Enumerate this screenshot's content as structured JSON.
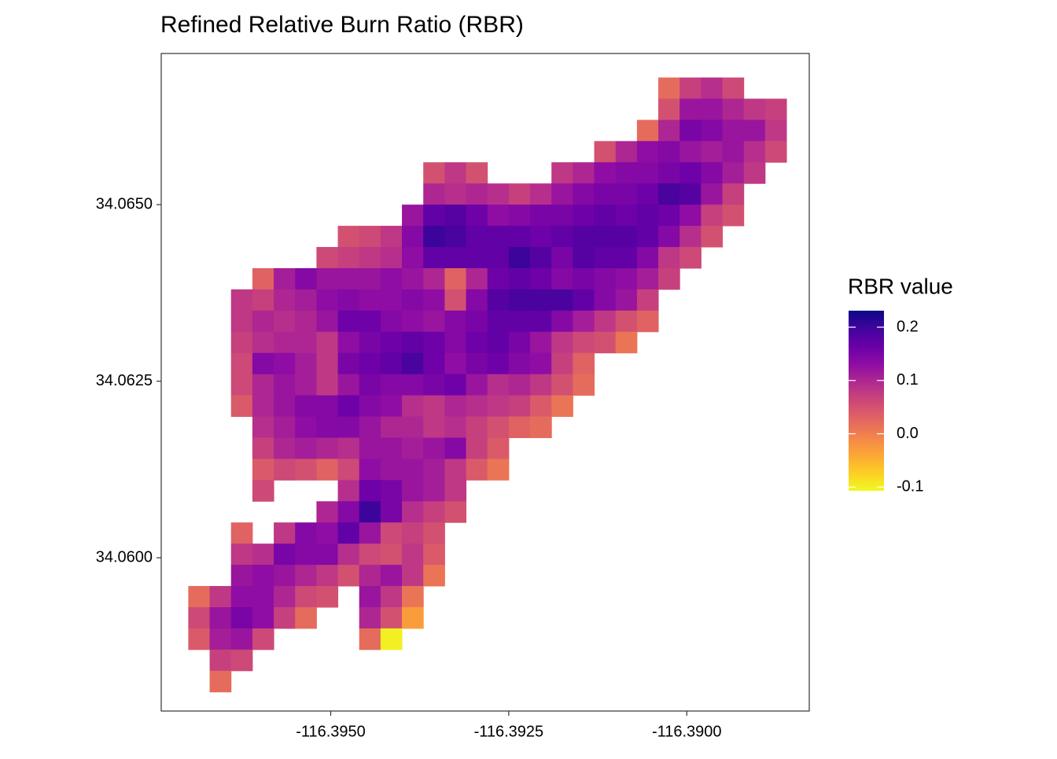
{
  "chart_data": {
    "type": "heatmap",
    "title": "Refined Relative Burn Ratio (RBR)",
    "legend_title": "RBR value",
    "colormap": "plasma",
    "reverse_colormap": true,
    "xlim": [
      -116.39738,
      -116.38828
    ],
    "ylim": [
      34.05783,
      34.06714
    ],
    "xticks": [
      {
        "value": -116.395,
        "label": "-116.3950"
      },
      {
        "value": -116.3925,
        "label": "-116.3925"
      },
      {
        "value": -116.39,
        "label": "-116.3900"
      }
    ],
    "yticks": [
      {
        "value": 34.06,
        "label": "34.0600"
      },
      {
        "value": 34.0625,
        "label": "34.0625"
      },
      {
        "value": 34.065,
        "label": "34.0650"
      }
    ],
    "zlim": [
      -0.107,
      0.231
    ],
    "zticks": [
      -0.1,
      {
        "value": 0,
        "label": "0.0"
      },
      0.1,
      0.2
    ],
    "x": [
      -116.39685,
      -116.39655,
      -116.39625,
      -116.39595,
      -116.39565,
      -116.39535,
      -116.39505,
      -116.39475,
      -116.39445,
      -116.39415,
      -116.39385,
      -116.39355,
      -116.39325,
      -116.39295,
      -116.39265,
      -116.39235,
      -116.39205,
      -116.39175,
      -116.39145,
      -116.39115,
      -116.39085,
      -116.39055,
      -116.39025,
      -116.38995,
      -116.38965,
      -116.38935,
      -116.38905,
      -116.38875
    ],
    "y": [
      34.06665,
      34.06635,
      34.06605,
      34.06575,
      34.06545,
      34.06515,
      34.06485,
      34.06455,
      34.06425,
      34.06395,
      34.06365,
      34.06335,
      34.06305,
      34.06275,
      34.06245,
      34.06215,
      34.06185,
      34.06155,
      34.06125,
      34.06095,
      34.06065,
      34.06035,
      34.06005,
      34.05975,
      34.05945,
      34.05915,
      34.05885,
      34.05855,
      34.05825
    ],
    "z": [
      [
        null,
        null,
        null,
        null,
        null,
        null,
        null,
        null,
        null,
        null,
        null,
        null,
        null,
        null,
        null,
        null,
        null,
        null,
        null,
        null,
        null,
        null,
        0.02,
        0.07,
        0.09,
        0.06,
        null,
        null
      ],
      [
        null,
        null,
        null,
        null,
        null,
        null,
        null,
        null,
        null,
        null,
        null,
        null,
        null,
        null,
        null,
        null,
        null,
        null,
        null,
        null,
        null,
        null,
        0.05,
        0.12,
        0.12,
        0.1,
        0.08,
        0.07
      ],
      [
        null,
        null,
        null,
        null,
        null,
        null,
        null,
        null,
        null,
        null,
        null,
        null,
        null,
        null,
        null,
        null,
        null,
        null,
        null,
        null,
        null,
        0.02,
        0.1,
        0.15,
        0.14,
        0.12,
        0.12,
        0.08
      ],
      [
        null,
        null,
        null,
        null,
        null,
        null,
        null,
        null,
        null,
        null,
        null,
        null,
        null,
        null,
        null,
        null,
        null,
        null,
        null,
        0.05,
        0.1,
        0.13,
        0.14,
        0.12,
        0.11,
        0.12,
        0.09,
        0.06
      ],
      [
        null,
        null,
        null,
        null,
        null,
        null,
        null,
        null,
        null,
        null,
        null,
        0.05,
        0.08,
        0.05,
        null,
        null,
        null,
        0.08,
        0.1,
        0.13,
        0.14,
        0.14,
        0.15,
        0.16,
        0.14,
        0.11,
        0.08,
        null
      ],
      [
        null,
        null,
        null,
        null,
        null,
        null,
        null,
        null,
        null,
        null,
        null,
        0.1,
        0.09,
        0.1,
        0.09,
        0.07,
        0.09,
        0.12,
        0.14,
        0.15,
        0.15,
        0.16,
        0.19,
        0.18,
        0.12,
        0.07,
        null,
        null
      ],
      [
        null,
        null,
        null,
        null,
        null,
        null,
        null,
        null,
        null,
        null,
        0.12,
        0.17,
        0.18,
        0.16,
        0.13,
        0.14,
        0.15,
        0.15,
        0.16,
        0.17,
        0.16,
        0.17,
        0.16,
        0.13,
        0.07,
        0.05,
        null,
        null
      ],
      [
        null,
        null,
        null,
        null,
        null,
        null,
        null,
        0.05,
        0.06,
        0.08,
        0.14,
        0.2,
        0.19,
        0.17,
        0.17,
        0.17,
        0.16,
        0.17,
        0.18,
        0.18,
        0.18,
        0.17,
        0.14,
        0.09,
        0.05,
        null,
        null,
        null
      ],
      [
        null,
        null,
        null,
        null,
        null,
        null,
        0.06,
        0.07,
        0.08,
        0.09,
        0.13,
        0.17,
        0.17,
        0.17,
        0.17,
        0.2,
        0.18,
        0.15,
        0.18,
        0.17,
        0.17,
        0.14,
        0.08,
        0.06,
        null,
        null,
        null,
        null
      ],
      [
        null,
        null,
        null,
        0.03,
        0.11,
        0.14,
        0.12,
        0.12,
        0.12,
        0.13,
        0.12,
        0.1,
        0.03,
        0.1,
        0.16,
        0.17,
        0.16,
        0.14,
        0.15,
        0.14,
        0.13,
        0.11,
        0.07,
        null,
        null,
        null,
        null,
        null
      ],
      [
        null,
        null,
        0.08,
        0.07,
        0.1,
        0.11,
        0.13,
        0.14,
        0.13,
        0.13,
        0.14,
        0.13,
        0.05,
        0.14,
        0.18,
        0.19,
        0.19,
        0.19,
        0.17,
        0.14,
        0.12,
        0.07,
        null,
        null,
        null,
        null,
        null,
        null
      ],
      [
        null,
        null,
        0.08,
        0.1,
        0.09,
        0.1,
        0.12,
        0.16,
        0.16,
        0.14,
        0.13,
        0.12,
        0.14,
        0.15,
        0.17,
        0.17,
        0.17,
        0.14,
        0.11,
        0.08,
        0.05,
        0.03,
        null,
        null,
        null,
        null,
        null,
        null
      ],
      [
        null,
        null,
        0.07,
        0.09,
        0.1,
        0.1,
        0.08,
        0.13,
        0.15,
        0.16,
        0.17,
        0.16,
        0.14,
        0.16,
        0.17,
        0.15,
        0.12,
        0.08,
        0.06,
        0.05,
        0.01,
        null,
        null,
        null,
        null,
        null,
        null,
        null
      ],
      [
        null,
        null,
        0.06,
        0.14,
        0.13,
        0.11,
        0.08,
        0.15,
        0.16,
        0.17,
        0.19,
        0.16,
        0.13,
        0.15,
        0.16,
        0.14,
        0.13,
        0.07,
        0.03,
        null,
        null,
        null,
        null,
        null,
        null,
        null,
        null,
        null
      ],
      [
        null,
        null,
        0.06,
        0.1,
        0.12,
        0.11,
        0.08,
        0.12,
        0.15,
        0.14,
        0.14,
        0.15,
        0.16,
        0.12,
        0.09,
        0.1,
        0.08,
        0.05,
        0.02,
        null,
        null,
        null,
        null,
        null,
        null,
        null,
        null,
        null
      ],
      [
        null,
        null,
        0.04,
        0.1,
        0.12,
        0.14,
        0.14,
        0.16,
        0.14,
        0.13,
        0.09,
        0.08,
        0.1,
        0.09,
        0.08,
        0.07,
        0.04,
        0.01,
        null,
        null,
        null,
        null,
        null,
        null,
        null,
        null,
        null,
        null
      ],
      [
        null,
        null,
        null,
        0.09,
        0.11,
        0.13,
        0.14,
        0.14,
        0.12,
        0.1,
        0.1,
        0.08,
        0.09,
        0.07,
        0.05,
        0.03,
        0.02,
        null,
        null,
        null,
        null,
        null,
        null,
        null,
        null,
        null,
        null,
        null
      ],
      [
        null,
        null,
        null,
        0.07,
        0.1,
        0.11,
        0.1,
        0.09,
        0.12,
        0.12,
        0.11,
        0.12,
        0.14,
        0.07,
        0.04,
        null,
        null,
        null,
        null,
        null,
        null,
        null,
        null,
        null,
        null,
        null,
        null,
        null
      ],
      [
        null,
        null,
        null,
        0.04,
        0.06,
        0.05,
        0.03,
        0.06,
        0.13,
        0.12,
        0.12,
        0.11,
        0.08,
        0.04,
        0.01,
        null,
        null,
        null,
        null,
        null,
        null,
        null,
        null,
        null,
        null,
        null,
        null,
        null
      ],
      [
        null,
        null,
        null,
        0.06,
        null,
        null,
        null,
        0.09,
        0.16,
        0.15,
        0.12,
        0.11,
        0.08,
        null,
        null,
        null,
        null,
        null,
        null,
        null,
        null,
        null,
        null,
        null,
        null,
        null,
        null,
        null
      ],
      [
        null,
        null,
        null,
        null,
        null,
        null,
        0.1,
        0.14,
        0.2,
        0.15,
        0.09,
        0.07,
        0.05,
        null,
        null,
        null,
        null,
        null,
        null,
        null,
        null,
        null,
        null,
        null,
        null,
        null,
        null,
        null
      ],
      [
        null,
        null,
        0.03,
        null,
        0.08,
        0.14,
        0.13,
        0.17,
        0.12,
        0.06,
        0.07,
        0.05,
        null,
        null,
        null,
        null,
        null,
        null,
        null,
        null,
        null,
        null,
        null,
        null,
        null,
        null,
        null,
        null
      ],
      [
        null,
        null,
        0.08,
        0.09,
        0.15,
        0.14,
        0.14,
        0.09,
        0.06,
        0.05,
        0.08,
        0.04,
        null,
        null,
        null,
        null,
        null,
        null,
        null,
        null,
        null,
        null,
        null,
        null,
        null,
        null,
        null,
        null
      ],
      [
        null,
        null,
        0.12,
        0.13,
        0.12,
        0.1,
        0.08,
        0.05,
        0.1,
        0.12,
        0.08,
        0.01,
        null,
        null,
        null,
        null,
        null,
        null,
        null,
        null,
        null,
        null,
        null,
        null,
        null,
        null,
        null,
        null
      ],
      [
        0.02,
        0.08,
        0.13,
        0.13,
        0.1,
        0.06,
        0.05,
        null,
        0.12,
        0.08,
        0.01,
        null,
        null,
        null,
        null,
        null,
        null,
        null,
        null,
        null,
        null,
        null,
        null,
        null,
        null,
        null,
        null,
        null
      ],
      [
        0.06,
        0.12,
        0.15,
        0.13,
        0.07,
        0.02,
        null,
        null,
        0.1,
        0.05,
        -0.03,
        null,
        null,
        null,
        null,
        null,
        null,
        null,
        null,
        null,
        null,
        null,
        null,
        null,
        null,
        null,
        null,
        null
      ],
      [
        0.04,
        0.11,
        0.12,
        0.06,
        null,
        null,
        null,
        null,
        0.02,
        -0.1,
        null,
        null,
        null,
        null,
        null,
        null,
        null,
        null,
        null,
        null,
        null,
        null,
        null,
        null,
        null,
        null,
        null,
        null
      ],
      [
        null,
        0.07,
        0.06,
        null,
        null,
        null,
        null,
        null,
        null,
        null,
        null,
        null,
        null,
        null,
        null,
        null,
        null,
        null,
        null,
        null,
        null,
        null,
        null,
        null,
        null,
        null,
        null,
        null
      ],
      [
        null,
        0.02,
        null,
        null,
        null,
        null,
        null,
        null,
        null,
        null,
        null,
        null,
        null,
        null,
        null,
        null,
        null,
        null,
        null,
        null,
        null,
        null,
        null,
        null,
        null,
        null,
        null,
        null
      ]
    ]
  }
}
